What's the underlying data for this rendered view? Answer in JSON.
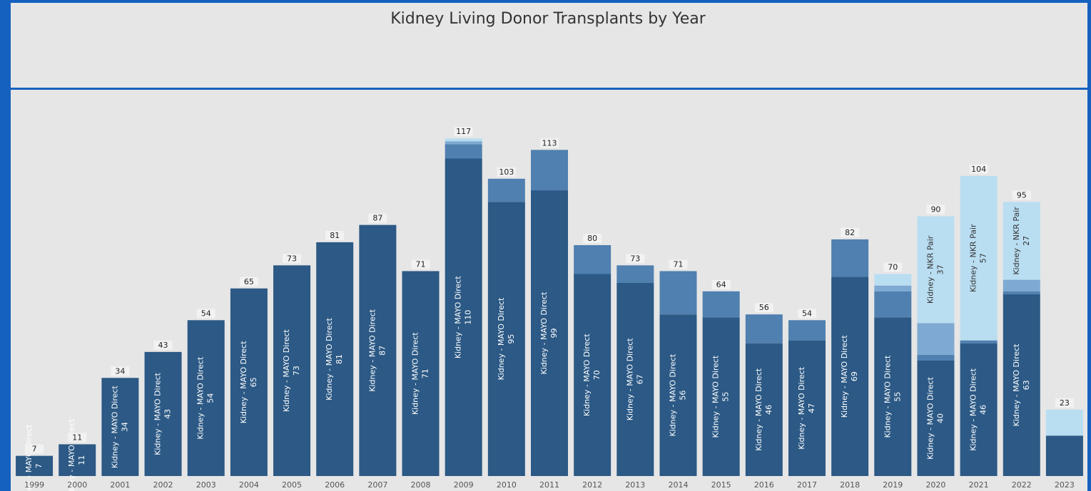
{
  "chart_data": {
    "type": "stacked_bar",
    "title": "Kidney Living Donor Transplants by Year",
    "categories": [
      "1999",
      "2000",
      "2001",
      "2002",
      "2003",
      "2004",
      "2005",
      "2006",
      "2007",
      "2008",
      "2009",
      "2010",
      "2011",
      "2012",
      "2013",
      "2014",
      "2015",
      "2016",
      "2017",
      "2018",
      "2019",
      "2020",
      "2021",
      "2022",
      "2023"
    ],
    "series": [
      {
        "name": "Kidney - MAYO Direct",
        "color": "#2c5985",
        "values": [
          7,
          11,
          34,
          43,
          54,
          65,
          73,
          81,
          87,
          71,
          110,
          95,
          99,
          70,
          67,
          56,
          55,
          46,
          47,
          69,
          55,
          40,
          46,
          63,
          14
        ],
        "value_labels": [
          "7",
          "11",
          "34",
          "43",
          "54",
          "65",
          "73",
          "81",
          "87",
          "71",
          "110",
          "95",
          "99",
          "70",
          "67",
          "56",
          "55",
          "46",
          "47",
          "69",
          "55",
          "40",
          "46",
          "63",
          null
        ]
      },
      {
        "color": "#4f80b0",
        "values": [
          null,
          null,
          null,
          null,
          null,
          null,
          null,
          null,
          null,
          null,
          5,
          8,
          14,
          10,
          6,
          15,
          9,
          10,
          7,
          13,
          9,
          2,
          1,
          1,
          null
        ]
      },
      {
        "color": "#7ea9d2",
        "values": [
          null,
          null,
          null,
          null,
          null,
          null,
          null,
          null,
          null,
          null,
          1,
          null,
          null,
          null,
          null,
          null,
          null,
          null,
          null,
          null,
          2,
          11,
          null,
          4,
          null
        ]
      },
      {
        "name": "Kidney - NKR Pair",
        "color": "#b9ddf1",
        "values": [
          null,
          null,
          null,
          null,
          null,
          null,
          null,
          null,
          null,
          null,
          1,
          null,
          null,
          null,
          null,
          null,
          null,
          null,
          null,
          null,
          4,
          37,
          57,
          27,
          9
        ],
        "value_labels": [
          null,
          null,
          null,
          null,
          null,
          null,
          null,
          null,
          null,
          null,
          null,
          null,
          null,
          null,
          null,
          null,
          null,
          null,
          null,
          null,
          null,
          "37",
          "57",
          "27",
          null
        ]
      }
    ],
    "totals": [
      7,
      11,
      34,
      43,
      54,
      65,
      73,
      81,
      87,
      71,
      117,
      103,
      113,
      80,
      73,
      71,
      64,
      56,
      54,
      82,
      70,
      90,
      104,
      95,
      23
    ],
    "ylim": [
      0,
      120
    ]
  }
}
